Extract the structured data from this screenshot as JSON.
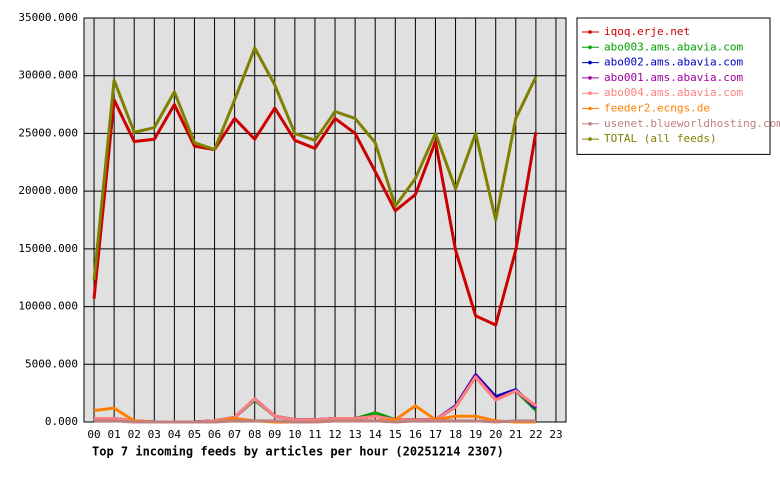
{
  "chart_data": {
    "type": "line",
    "title": "Top 7 incoming feeds by articles per hour (20251214 2307)",
    "categories": [
      "00",
      "01",
      "02",
      "03",
      "04",
      "05",
      "06",
      "07",
      "08",
      "09",
      "10",
      "11",
      "12",
      "13",
      "14",
      "15",
      "16",
      "17",
      "18",
      "19",
      "20",
      "21",
      "22",
      "23"
    ],
    "ylim": [
      0,
      35000
    ],
    "yticks": [
      {
        "value": 0,
        "label": "0.000"
      },
      {
        "value": 5000,
        "label": "5000.000"
      },
      {
        "value": 10000,
        "label": "10000.000"
      },
      {
        "value": 15000,
        "label": "15000.000"
      },
      {
        "value": 20000,
        "label": "20000.000"
      },
      {
        "value": 25000,
        "label": "25000.000"
      },
      {
        "value": 30000,
        "label": "30000.000"
      },
      {
        "value": 35000,
        "label": "35000.000"
      }
    ],
    "grid": true,
    "legend": "outside-right",
    "series": [
      {
        "name": "iqoq.erje.net",
        "color": "#cc0000",
        "values": [
          10700,
          27900,
          24300,
          24500,
          27500,
          23900,
          23600,
          26300,
          24500,
          27200,
          24400,
          23700,
          26300,
          25000,
          21700,
          18300,
          19700,
          24300,
          14900,
          9200,
          8400,
          14900,
          25100,
          null
        ]
      },
      {
        "name": "abo003.ams.abavia.com",
        "color": "#00a000",
        "values": [
          300,
          300,
          100,
          0,
          0,
          0,
          100,
          400,
          1900,
          500,
          200,
          200,
          300,
          300,
          800,
          200,
          200,
          200,
          1300,
          3900,
          1900,
          2700,
          1000,
          null
        ]
      },
      {
        "name": "abo002.ams.abavia.com",
        "color": "#0000c0",
        "values": [
          300,
          300,
          100,
          0,
          0,
          0,
          100,
          400,
          2000,
          500,
          200,
          200,
          300,
          300,
          500,
          200,
          200,
          200,
          1400,
          4100,
          2200,
          2800,
          1200,
          null
        ]
      },
      {
        "name": "abo001.ams.abavia.com",
        "color": "#a000a0",
        "values": [
          300,
          300,
          100,
          0,
          0,
          0,
          100,
          400,
          2000,
          500,
          200,
          200,
          300,
          300,
          500,
          200,
          200,
          200,
          1300,
          4000,
          2000,
          2700,
          1300,
          null
        ]
      },
      {
        "name": "abo004.ams.abavia.com",
        "color": "#ff8080",
        "values": [
          300,
          300,
          100,
          0,
          0,
          0,
          100,
          400,
          2000,
          500,
          200,
          200,
          300,
          300,
          500,
          200,
          200,
          200,
          1300,
          3900,
          1900,
          2700,
          1400,
          null
        ]
      },
      {
        "name": "feeder2.ecngs.de",
        "color": "#ff8000",
        "values": [
          1000,
          1200,
          100,
          0,
          0,
          0,
          0,
          300,
          100,
          0,
          0,
          0,
          100,
          100,
          100,
          200,
          1400,
          200,
          500,
          500,
          100,
          0,
          0,
          null
        ]
      },
      {
        "name": "usenet.blueworldhosting.com",
        "color": "#c08080",
        "values": [
          100,
          100,
          0,
          0,
          0,
          0,
          0,
          100,
          100,
          100,
          0,
          0,
          100,
          100,
          100,
          0,
          100,
          100,
          100,
          100,
          0,
          100,
          100,
          null
        ]
      },
      {
        "name": "TOTAL (all feeds)",
        "color": "#808000",
        "values": [
          12300,
          29600,
          25100,
          25500,
          28600,
          24200,
          23600,
          27900,
          32400,
          29200,
          25000,
          24400,
          26900,
          26300,
          24200,
          18700,
          21100,
          25000,
          20200,
          25000,
          17500,
          26300,
          29900,
          null
        ]
      }
    ]
  }
}
